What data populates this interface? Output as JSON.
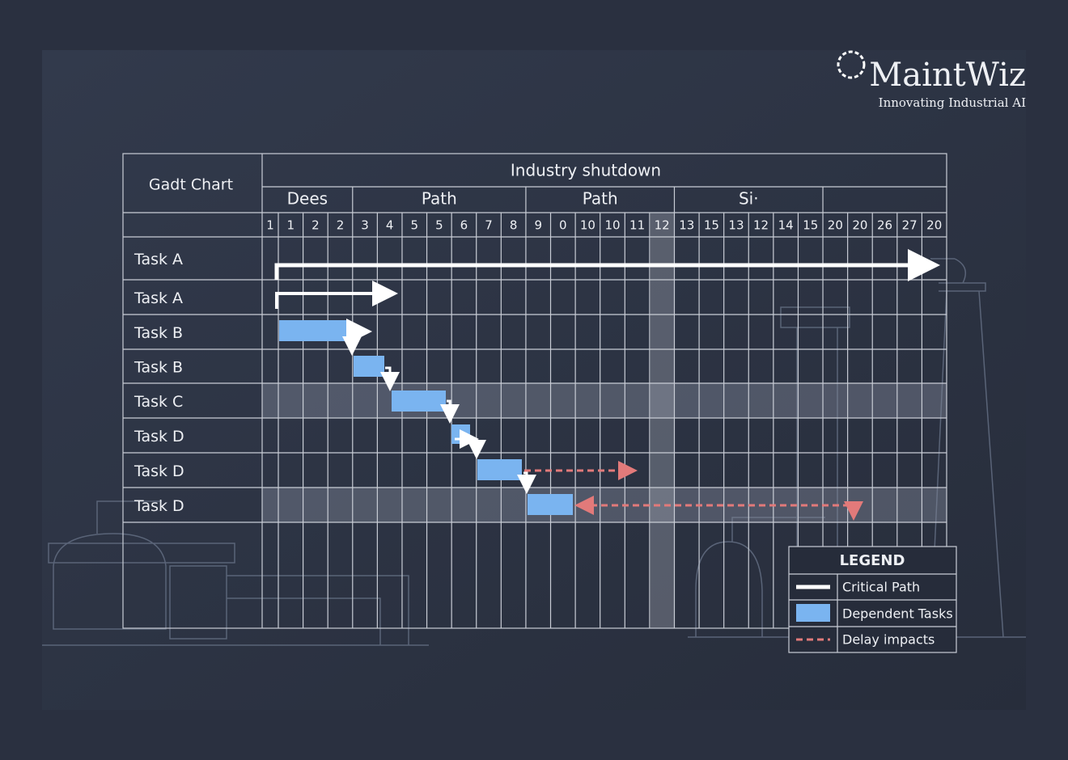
{
  "logo": {
    "brand": "MaintWiz",
    "tagline": "Innovating Industrial AI"
  },
  "table": {
    "corner": "Gadt Chart",
    "title": "Industry shutdown",
    "groups": [
      "Dees",
      "Path",
      "Path",
      "Si·"
    ],
    "columns": [
      "1",
      "1",
      "2",
      "2",
      "3",
      "4",
      "5",
      "5",
      "6",
      "7",
      "8",
      "9",
      "0",
      "10",
      "10",
      "11",
      "12",
      "13",
      "15",
      "13",
      "12",
      "14",
      "15",
      "20",
      "20",
      "26",
      "27",
      "20"
    ],
    "rows": [
      "Task A",
      "Task A",
      "Task B",
      "Task B",
      "Task C",
      "Task D",
      "Task D",
      "Task D"
    ]
  },
  "legend": {
    "title": "LEGEND",
    "items": [
      "Critical Path",
      "Dependent Tasks",
      "Delay impacts"
    ]
  }
}
